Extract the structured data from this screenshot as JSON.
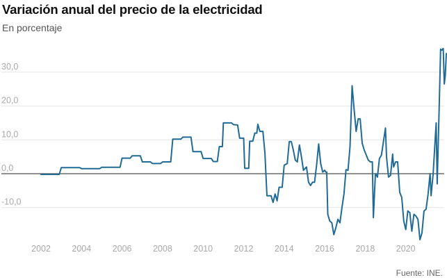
{
  "title": "Variación anual del precio de la electricidad",
  "subtitle": "En porcentaje",
  "source": "Fuente: INE.",
  "colors": {
    "line": "#1f6a96",
    "grid": "#e4e4e4",
    "zero": "#222222",
    "tick": "#a8a8a8"
  },
  "chart_data": {
    "type": "line",
    "title": "Variación anual del precio de la electricidad",
    "subtitle": "En porcentaje",
    "xlabel": "",
    "ylabel": "",
    "xlim": [
      2001.3,
      2021.9
    ],
    "ylim": [
      -20,
      37
    ],
    "grid": true,
    "y_ticks": [
      -10,
      0,
      10,
      20,
      30
    ],
    "y_tick_labels": [
      "-10,0",
      "0,0",
      "10,0",
      "20,0",
      "30,0"
    ],
    "x_ticks": [
      2002,
      2004,
      2006,
      2008,
      2010,
      2012,
      2014,
      2016,
      2018,
      2020
    ],
    "x_tick_labels": [
      "2002",
      "2004",
      "2006",
      "2008",
      "2010",
      "2012",
      "2014",
      "2016",
      "2018",
      "2020"
    ],
    "series": [
      {
        "values": [
          [
            2002.0,
            -0.2
          ],
          [
            2002.9,
            -0.2
          ],
          [
            2003.0,
            1.8
          ],
          [
            2003.9,
            1.8
          ],
          [
            2004.0,
            1.5
          ],
          [
            2004.9,
            1.5
          ],
          [
            2005.0,
            1.9
          ],
          [
            2005.9,
            1.9
          ],
          [
            2006.0,
            4.6
          ],
          [
            2006.4,
            4.6
          ],
          [
            2006.5,
            5.3
          ],
          [
            2006.9,
            5.3
          ],
          [
            2007.0,
            3.5
          ],
          [
            2007.4,
            3.5
          ],
          [
            2007.5,
            3.0
          ],
          [
            2007.9,
            3.0
          ],
          [
            2008.0,
            3.5
          ],
          [
            2008.4,
            3.5
          ],
          [
            2008.5,
            10.2
          ],
          [
            2008.9,
            10.2
          ],
          [
            2009.0,
            10.8
          ],
          [
            2009.4,
            10.8
          ],
          [
            2009.5,
            6.5
          ],
          [
            2009.9,
            6.5
          ],
          [
            2010.0,
            4.5
          ],
          [
            2010.4,
            4.5
          ],
          [
            2010.5,
            3.6
          ],
          [
            2010.7,
            3.6
          ],
          [
            2010.8,
            8.0
          ],
          [
            2010.95,
            8.0
          ],
          [
            2011.0,
            15.0
          ],
          [
            2011.4,
            15.0
          ],
          [
            2011.5,
            14.5
          ],
          [
            2011.7,
            14.4
          ],
          [
            2011.8,
            10.5
          ],
          [
            2012.0,
            10.5
          ],
          [
            2012.05,
            1.6
          ],
          [
            2012.25,
            1.6
          ],
          [
            2012.3,
            9.6
          ],
          [
            2012.45,
            9.6
          ],
          [
            2012.55,
            12.0
          ],
          [
            2012.65,
            12.0
          ],
          [
            2012.7,
            14.6
          ],
          [
            2012.8,
            12.5
          ],
          [
            2012.95,
            12.5
          ],
          [
            2013.05,
            6.0
          ],
          [
            2013.15,
            -6.5
          ],
          [
            2013.35,
            -6.5
          ],
          [
            2013.45,
            -8.5
          ],
          [
            2013.55,
            -6.0
          ],
          [
            2013.65,
            -8.0
          ],
          [
            2013.75,
            -4.0
          ],
          [
            2013.9,
            -4.0
          ],
          [
            2014.0,
            2.5
          ],
          [
            2014.15,
            3.0
          ],
          [
            2014.25,
            9.5
          ],
          [
            2014.35,
            9.5
          ],
          [
            2014.45,
            7.0
          ],
          [
            2014.55,
            4.0
          ],
          [
            2014.65,
            3.5
          ],
          [
            2014.75,
            8.5
          ],
          [
            2014.85,
            5.0
          ],
          [
            2014.95,
            1.0
          ],
          [
            2015.1,
            2.0
          ],
          [
            2015.2,
            -2.5
          ],
          [
            2015.3,
            -3.5
          ],
          [
            2015.4,
            -2.5
          ],
          [
            2015.5,
            -2.5
          ],
          [
            2015.6,
            2.5
          ],
          [
            2015.7,
            8.8
          ],
          [
            2015.8,
            3.0
          ],
          [
            2015.9,
            0.5
          ],
          [
            2016.0,
            1.0
          ],
          [
            2016.05,
            0.5
          ],
          [
            2016.1,
            0.5
          ],
          [
            2016.15,
            -12.0
          ],
          [
            2016.25,
            -14.0
          ],
          [
            2016.35,
            -14.5
          ],
          [
            2016.45,
            -18.0
          ],
          [
            2016.55,
            -16.0
          ],
          [
            2016.65,
            -13.5
          ],
          [
            2016.75,
            -14.5
          ],
          [
            2016.85,
            -10.0
          ],
          [
            2016.95,
            -6.0
          ],
          [
            2017.05,
            1.2
          ],
          [
            2017.15,
            1.0
          ],
          [
            2017.25,
            8.0
          ],
          [
            2017.35,
            26.0
          ],
          [
            2017.45,
            19.0
          ],
          [
            2017.55,
            12.5
          ],
          [
            2017.65,
            16.2
          ],
          [
            2017.75,
            16.2
          ],
          [
            2017.85,
            9.0
          ],
          [
            2017.95,
            7.0
          ],
          [
            2018.05,
            5.5
          ],
          [
            2018.15,
            4.0
          ],
          [
            2018.25,
            3.5
          ],
          [
            2018.35,
            3.5
          ],
          [
            2018.4,
            -13.0
          ],
          [
            2018.5,
            0.0
          ],
          [
            2018.6,
            -1.0
          ],
          [
            2018.7,
            4.5
          ],
          [
            2018.8,
            5.5
          ],
          [
            2018.9,
            9.5
          ],
          [
            2019.0,
            13.5
          ],
          [
            2019.05,
            5.0
          ],
          [
            2019.15,
            -1.0
          ],
          [
            2019.25,
            -0.5
          ],
          [
            2019.35,
            5.8
          ],
          [
            2019.4,
            2.0
          ],
          [
            2019.5,
            3.5
          ],
          [
            2019.6,
            3.5
          ],
          [
            2019.7,
            -5.5
          ],
          [
            2019.8,
            -7.0
          ],
          [
            2019.9,
            -14.0
          ],
          [
            2020.0,
            -16.5
          ],
          [
            2020.1,
            -11.0
          ],
          [
            2020.2,
            -11.5
          ],
          [
            2020.3,
            -17.0
          ],
          [
            2020.4,
            -12.0
          ],
          [
            2020.5,
            -12.5
          ],
          [
            2020.6,
            -13.5
          ],
          [
            2020.7,
            -19.5
          ],
          [
            2020.8,
            -17.5
          ],
          [
            2020.9,
            -11.0
          ],
          [
            2021.0,
            -10.5
          ],
          [
            2021.1,
            -6.0
          ],
          [
            2021.15,
            -3.0
          ],
          [
            2021.2,
            0.0
          ],
          [
            2021.25,
            -6.5
          ],
          [
            2021.35,
            0.0
          ],
          [
            2021.5,
            15.0
          ],
          [
            2021.55,
            -3.0
          ],
          [
            2021.65,
            20.0
          ],
          [
            2021.72,
            36.8
          ],
          [
            2021.78,
            36.5
          ],
          [
            2021.85,
            37.0
          ],
          [
            2021.9,
            26.5
          ],
          [
            2021.95,
            29.0
          ],
          [
            2022.0,
            35.5
          ]
        ]
      }
    ]
  }
}
